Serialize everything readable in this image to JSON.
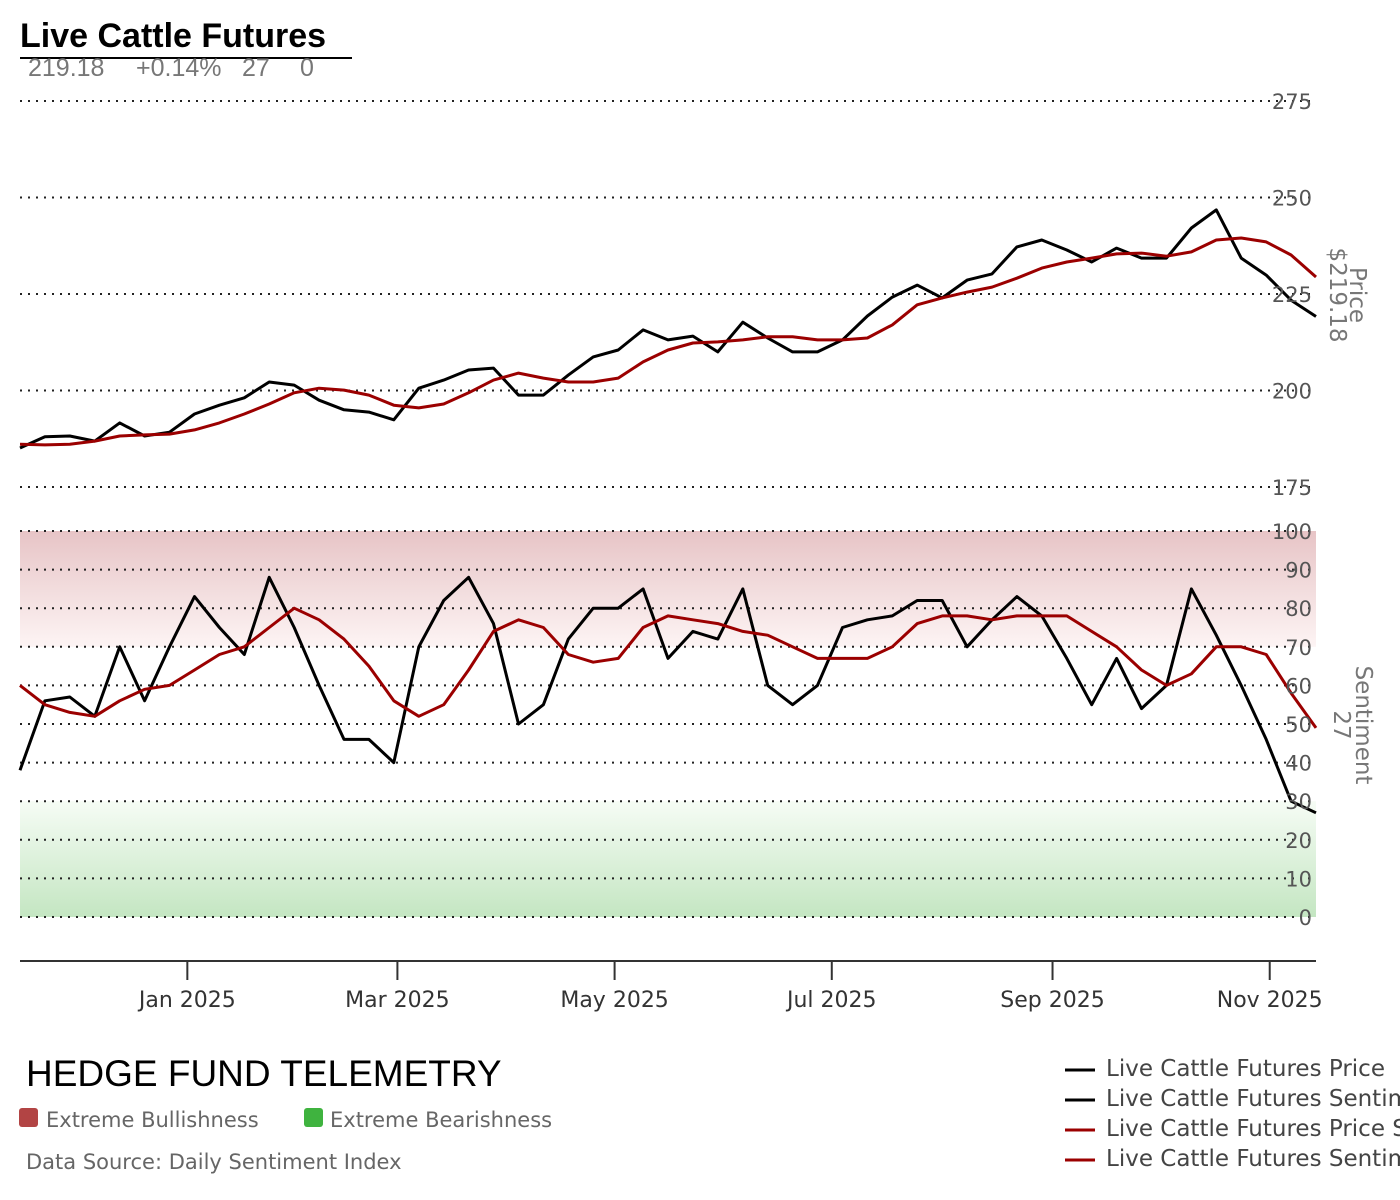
{
  "header": {
    "title": "Live Cattle Futures",
    "stats": [
      "219.18",
      "+0.14%",
      "27",
      "0"
    ]
  },
  "footer": {
    "brand": "HEDGE FUND TELEMETRY",
    "band_legend": [
      {
        "label": "Extreme Bullishness",
        "color": "#b24444"
      },
      {
        "label": "Extreme Bearishness",
        "color": "#3fb33f"
      }
    ],
    "source": "Data Source: Daily Sentiment Index"
  },
  "chart_data": {
    "type": "line",
    "legend_position": "bottom-right",
    "legend": [
      {
        "label": "Live Cattle Futures Price",
        "color": "#000000"
      },
      {
        "label": "Live Cattle Futures Sentim",
        "color": "#000000"
      },
      {
        "label": "Live Cattle Futures Price S",
        "color": "#9b0000"
      },
      {
        "label": "Live Cattle Futures Sentim",
        "color": "#9b0000"
      }
    ],
    "x_ticks": [
      {
        "date": "2025-01-01",
        "label": "Jan 2025"
      },
      {
        "date": "2025-03-01",
        "label": "Mar 2025"
      },
      {
        "date": "2025-05-01",
        "label": "May 2025"
      },
      {
        "date": "2025-07-01",
        "label": "Jul 2025"
      },
      {
        "date": "2025-09-01",
        "label": "Sep 2025"
      },
      {
        "date": "2025-11-01",
        "label": "Nov 2025"
      }
    ],
    "x_range": [
      "2024-11-15",
      "2025-11-14"
    ],
    "price_panel": {
      "axis_title": "Price",
      "axis_value": "$219.18",
      "ylim": [
        175,
        275
      ],
      "ticks": [
        275,
        250,
        225,
        200,
        175
      ],
      "grid": true
    },
    "sentiment_panel": {
      "axis_title": "Sentiment",
      "axis_value": "27",
      "ylim": [
        0,
        100
      ],
      "ticks": [
        100,
        90,
        80,
        70,
        60,
        50,
        40,
        30,
        20,
        10,
        0
      ],
      "grid": true,
      "bullish_band": [
        70,
        100
      ],
      "bearish_band": [
        0,
        30
      ]
    },
    "dates": [
      "2024-11-15",
      "2024-11-22",
      "2024-11-29",
      "2024-12-06",
      "2024-12-13",
      "2024-12-20",
      "2024-12-27",
      "2025-01-03",
      "2025-01-10",
      "2025-01-17",
      "2025-01-24",
      "2025-01-31",
      "2025-02-07",
      "2025-02-14",
      "2025-02-21",
      "2025-02-28",
      "2025-03-07",
      "2025-03-14",
      "2025-03-21",
      "2025-03-28",
      "2025-04-04",
      "2025-04-11",
      "2025-04-18",
      "2025-04-25",
      "2025-05-02",
      "2025-05-09",
      "2025-05-16",
      "2025-05-23",
      "2025-05-30",
      "2025-06-06",
      "2025-06-13",
      "2025-06-20",
      "2025-06-27",
      "2025-07-04",
      "2025-07-11",
      "2025-07-18",
      "2025-07-25",
      "2025-08-01",
      "2025-08-08",
      "2025-08-15",
      "2025-08-22",
      "2025-08-29",
      "2025-09-05",
      "2025-09-12",
      "2025-09-19",
      "2025-09-26",
      "2025-10-03",
      "2025-10-10",
      "2025-10-17",
      "2025-10-24",
      "2025-10-31",
      "2025-11-07",
      "2025-11-14"
    ],
    "series": [
      {
        "key": "price",
        "panel": "price",
        "color": "#000000",
        "values": [
          185.1,
          188.0,
          188.2,
          186.9,
          191.6,
          188.2,
          189.2,
          193.9,
          196.2,
          198.1,
          202.2,
          201.4,
          197.5,
          195.0,
          194.4,
          192.4,
          200.6,
          202.7,
          205.3,
          205.8,
          198.8,
          198.8,
          204.0,
          208.7,
          210.5,
          215.7,
          213.1,
          214.1,
          210.0,
          217.7,
          213.6,
          210.0,
          210.0,
          213.1,
          219.3,
          224.2,
          227.3,
          224.0,
          228.6,
          230.2,
          237.2,
          239.0,
          236.4,
          233.3,
          236.9,
          234.3,
          234.3,
          242.1,
          246.8,
          234.3,
          229.9,
          223.4,
          219.18
        ]
      },
      {
        "key": "price_sma",
        "panel": "price",
        "color": "#9b0000",
        "values": [
          186.1,
          185.9,
          186.1,
          186.9,
          188.2,
          188.5,
          188.7,
          189.8,
          191.6,
          193.9,
          196.5,
          199.4,
          200.6,
          200.1,
          198.8,
          196.2,
          195.5,
          196.5,
          199.4,
          202.7,
          204.5,
          203.2,
          202.2,
          202.2,
          203.2,
          207.4,
          210.5,
          212.3,
          212.6,
          213.1,
          213.9,
          213.9,
          213.1,
          213.1,
          213.6,
          217.0,
          222.2,
          224.0,
          225.5,
          226.8,
          229.1,
          231.7,
          233.3,
          234.3,
          235.4,
          235.6,
          234.8,
          235.9,
          239.0,
          239.5,
          238.5,
          235.1,
          229.4
        ]
      },
      {
        "key": "sentiment",
        "panel": "sentiment",
        "color": "#000000",
        "values": [
          38,
          56,
          57,
          52,
          70,
          56,
          70,
          83,
          75,
          68,
          88,
          75,
          60,
          46,
          46,
          40,
          70,
          82,
          88,
          76,
          50,
          55,
          72,
          80,
          80,
          85,
          67,
          74,
          72,
          85,
          60,
          55,
          60,
          75,
          77,
          78,
          82,
          82,
          70,
          77,
          83,
          78,
          67,
          55,
          67,
          54,
          60,
          85,
          73,
          60,
          46,
          30,
          27
        ]
      },
      {
        "key": "sentiment_sma",
        "panel": "sentiment",
        "color": "#9b0000",
        "values": [
          60,
          55,
          53,
          52,
          56,
          59,
          60,
          64,
          68,
          70,
          75,
          80,
          77,
          72,
          65,
          56,
          52,
          55,
          64,
          74,
          77,
          75,
          68,
          66,
          67,
          75,
          78,
          77,
          76,
          74,
          73,
          70,
          67,
          67,
          67,
          70,
          76,
          78,
          78,
          77,
          78,
          78,
          78,
          74,
          70,
          64,
          60,
          63,
          70,
          70,
          68,
          58,
          49
        ]
      }
    ]
  }
}
